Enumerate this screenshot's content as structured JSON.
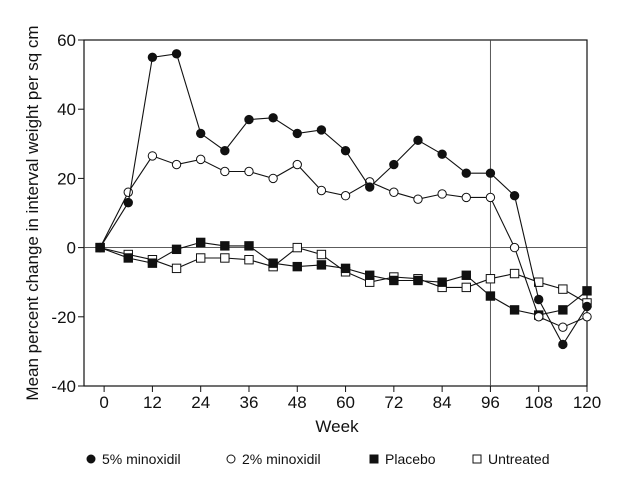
{
  "chart_data": {
    "type": "line",
    "title": "",
    "xlabel": "Week",
    "ylabel": "Mean percent change in interval weight per sq cm",
    "xlim": [
      -5,
      120
    ],
    "ylim": [
      -40,
      60
    ],
    "xticks": [
      "0",
      "12",
      "24",
      "36",
      "48",
      "60",
      "72",
      "84",
      "96",
      "108",
      "120"
    ],
    "xtick_values": [
      0,
      12,
      24,
      36,
      48,
      60,
      72,
      84,
      96,
      108,
      120
    ],
    "yticks": [
      "60",
      "40",
      "20",
      "0",
      "-20",
      "-40"
    ],
    "ytick_values": [
      60,
      40,
      20,
      0,
      -20,
      -40
    ],
    "reference_lines": {
      "horizontal_y": 0,
      "vertical_x": 96
    },
    "grid": false,
    "legend_position": "bottom",
    "series": [
      {
        "name": "5% minoxidil",
        "marker": "filled-circle",
        "x": [
          -1,
          6,
          12,
          18,
          24,
          30,
          36,
          42,
          48,
          54,
          60,
          66,
          72,
          78,
          84,
          90,
          96,
          102,
          108,
          114,
          120
        ],
        "values": [
          0,
          13,
          55,
          56,
          33,
          28,
          37,
          37.5,
          33,
          34,
          28,
          17.5,
          24,
          31,
          27,
          21.5,
          21.5,
          15,
          -15,
          -28,
          -17
        ]
      },
      {
        "name": "2% minoxidil",
        "marker": "open-circle",
        "x": [
          -1,
          6,
          12,
          18,
          24,
          30,
          36,
          42,
          48,
          54,
          60,
          66,
          72,
          78,
          84,
          90,
          96,
          102,
          108,
          114,
          120
        ],
        "values": [
          0,
          16,
          26.5,
          24,
          25.5,
          22,
          22,
          20,
          24,
          16.5,
          15,
          19,
          16,
          14,
          15.5,
          14.5,
          14.5,
          0,
          -20,
          -23,
          -20
        ]
      },
      {
        "name": "Placebo",
        "marker": "filled-square",
        "x": [
          -1,
          6,
          12,
          18,
          24,
          30,
          36,
          42,
          48,
          54,
          60,
          66,
          72,
          78,
          84,
          90,
          96,
          102,
          108,
          114,
          120
        ],
        "values": [
          0,
          -3,
          -4.5,
          -0.5,
          1.5,
          0.5,
          0.5,
          -4.5,
          -5.5,
          -5,
          -6,
          -8,
          -9.5,
          -9.5,
          -10,
          -8,
          -14,
          -18,
          -19.5,
          -18,
          -12.5
        ]
      },
      {
        "name": "Untreated",
        "marker": "open-square",
        "x": [
          -1,
          6,
          12,
          18,
          24,
          30,
          36,
          42,
          48,
          54,
          60,
          66,
          72,
          78,
          84,
          90,
          96,
          102,
          108,
          114,
          120
        ],
        "values": [
          0,
          -2,
          -3.5,
          -6,
          -3,
          -3,
          -3.5,
          -5.5,
          0,
          -2,
          -7,
          -10,
          -8.5,
          -9,
          -11.5,
          -11.5,
          -9,
          -7.5,
          -10,
          -12,
          -16
        ]
      }
    ]
  }
}
